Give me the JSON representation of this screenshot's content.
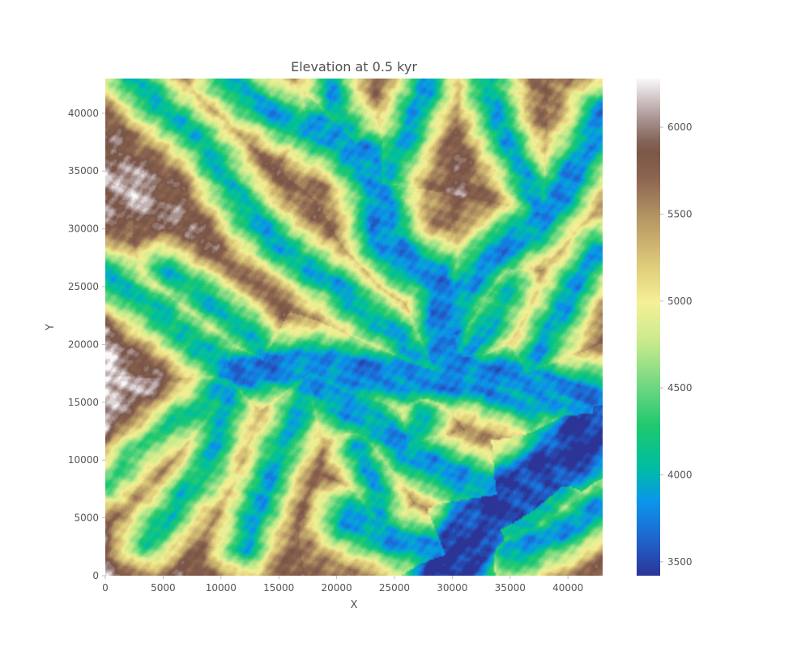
{
  "chart_data": {
    "type": "heatmap",
    "title": "Elevation at 0.5 kyr",
    "xlabel": "X",
    "ylabel": "Y",
    "xlim": [
      0,
      43000
    ],
    "ylim": [
      0,
      43000
    ],
    "x_ticks": [
      0,
      5000,
      10000,
      15000,
      20000,
      25000,
      30000,
      35000,
      40000
    ],
    "y_ticks": [
      0,
      5000,
      10000,
      15000,
      20000,
      25000,
      30000,
      35000,
      40000
    ],
    "grid": false,
    "colormap": "terrain",
    "colorbar": {
      "range": [
        3420,
        6280
      ],
      "ticks": [
        3500,
        4000,
        4500,
        5000,
        5500,
        6000
      ]
    },
    "valley_channels": [
      {
        "points": [
          [
            43000,
            13500
          ],
          [
            40000,
            10500
          ],
          [
            38000,
            8500
          ],
          [
            35000,
            6500
          ],
          [
            32000,
            4000
          ],
          [
            30500,
            1500
          ],
          [
            29500,
            0
          ]
        ],
        "width": 1800
      },
      {
        "points": [
          [
            43000,
            15000
          ],
          [
            39000,
            16000
          ],
          [
            36000,
            17000
          ],
          [
            33000,
            17000
          ],
          [
            29000,
            17200
          ],
          [
            26000,
            17000
          ],
          [
            22000,
            17500
          ],
          [
            18000,
            18200
          ],
          [
            14000,
            18000
          ],
          [
            11000,
            17500
          ]
        ],
        "width": 1000
      },
      {
        "points": [
          [
            29000,
            17500
          ],
          [
            29000,
            21000
          ],
          [
            29200,
            24000
          ],
          [
            28500,
            26000
          ],
          [
            26000,
            27000
          ],
          [
            24000,
            29500
          ],
          [
            23700,
            33000
          ],
          [
            22500,
            36000
          ],
          [
            20000,
            38000
          ],
          [
            18000,
            38800
          ]
        ],
        "width": 900
      },
      {
        "points": [
          [
            43000,
            13500
          ],
          [
            40000,
            15500
          ],
          [
            37000,
            15000
          ],
          [
            34000,
            16000
          ],
          [
            32000,
            17500
          ],
          [
            30000,
            19000
          ],
          [
            29500,
            21500
          ]
        ],
        "width": 800
      },
      {
        "points": [
          [
            29500,
            22000
          ],
          [
            31500,
            25500
          ],
          [
            33500,
            27500
          ],
          [
            35500,
            29000
          ],
          [
            38000,
            31000
          ],
          [
            40000,
            34000
          ],
          [
            42000,
            37500
          ],
          [
            43000,
            40000
          ]
        ],
        "width": 700
      },
      {
        "points": [
          [
            35000,
            6500
          ],
          [
            32000,
            7800
          ],
          [
            29000,
            9000
          ],
          [
            26000,
            11000
          ],
          [
            23000,
            13500
          ],
          [
            20000,
            15000
          ],
          [
            18000,
            17000
          ]
        ],
        "width": 700
      },
      {
        "points": [
          [
            30500,
            1500
          ],
          [
            27000,
            2500
          ],
          [
            24000,
            3500
          ],
          [
            21000,
            5000
          ]
        ],
        "width": 700
      },
      {
        "points": [
          [
            11000,
            17500
          ],
          [
            9000,
            19000
          ],
          [
            6500,
            21000
          ],
          [
            3500,
            23500
          ],
          [
            0,
            26000
          ]
        ],
        "width": 600
      },
      {
        "points": [
          [
            43000,
            6000
          ],
          [
            40500,
            4500
          ],
          [
            37500,
            3000
          ],
          [
            35000,
            2000
          ]
        ],
        "width": 600
      },
      {
        "points": [
          [
            18000,
            38800
          ],
          [
            15500,
            39500
          ],
          [
            13000,
            41000
          ],
          [
            10500,
            43000
          ]
        ],
        "width": 500
      },
      {
        "points": [
          [
            29000,
            17200
          ],
          [
            26000,
            20000
          ],
          [
            23000,
            22500
          ],
          [
            20000,
            25000
          ],
          [
            16500,
            27500
          ],
          [
            13500,
            30000
          ],
          [
            11000,
            33500
          ]
        ],
        "width": 450
      },
      {
        "points": [
          [
            11000,
            17500
          ],
          [
            10000,
            13000
          ],
          [
            8500,
            9000
          ],
          [
            6000,
            6000
          ],
          [
            3500,
            3000
          ]
        ],
        "width": 450
      },
      {
        "points": [
          [
            24000,
            34000
          ],
          [
            26000,
            38000
          ],
          [
            27500,
            41500
          ],
          [
            28000,
            43000
          ]
        ],
        "width": 450
      },
      {
        "points": [
          [
            36000,
            17000
          ],
          [
            38500,
            21000
          ],
          [
            40500,
            25000
          ],
          [
            42500,
            28000
          ]
        ],
        "width": 450
      },
      {
        "points": [
          [
            22500,
            36000
          ],
          [
            20000,
            40000
          ],
          [
            19500,
            43000
          ]
        ],
        "width": 400
      },
      {
        "points": [
          [
            38000,
            31000
          ],
          [
            36000,
            35000
          ],
          [
            34000,
            39000
          ],
          [
            33000,
            43000
          ]
        ],
        "width": 400
      },
      {
        "points": [
          [
            32000,
            4000
          ],
          [
            34500,
            4000
          ],
          [
            37000,
            5000
          ],
          [
            39500,
            7500
          ]
        ],
        "width": 400
      },
      {
        "points": [
          [
            26000,
            11000
          ],
          [
            27500,
            14000
          ]
        ],
        "width": 350
      },
      {
        "points": [
          [
            18000,
            18200
          ],
          [
            16500,
            14000
          ],
          [
            15000,
            10500
          ],
          [
            13500,
            6500
          ],
          [
            12000,
            2500
          ]
        ],
        "width": 400
      },
      {
        "points": [
          [
            14000,
            18000
          ],
          [
            12000,
            21500
          ],
          [
            8500,
            24000
          ],
          [
            5000,
            26500
          ]
        ],
        "width": 350
      },
      {
        "points": [
          [
            29500,
            22000
          ],
          [
            31000,
            19000
          ],
          [
            33500,
            22000
          ],
          [
            35000,
            25000
          ]
        ],
        "width": 350
      },
      {
        "points": [
          [
            0,
            8000
          ],
          [
            2500,
            10500
          ],
          [
            5000,
            12500
          ],
          [
            8000,
            14500
          ],
          [
            11000,
            17500
          ]
        ],
        "width": 350
      },
      {
        "points": [
          [
            24000,
            3500
          ],
          [
            23500,
            7500
          ],
          [
            22000,
            11000
          ]
        ],
        "width": 350
      },
      {
        "points": [
          [
            11000,
            33500
          ],
          [
            8500,
            37500
          ],
          [
            5000,
            40500
          ],
          [
            2000,
            43000
          ]
        ],
        "width": 350
      }
    ]
  }
}
